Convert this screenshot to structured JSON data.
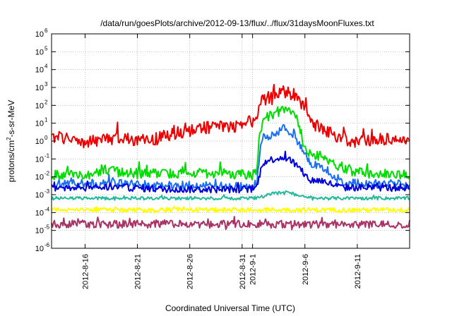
{
  "chart_data": {
    "type": "line",
    "title": "/data/run/goesPlots/archive/2012-09-13/flux/../flux/31daysMoonFluxes.txt",
    "xlabel": "Coordinated Universal Time (UTC)",
    "ylabel_prefix": "protons/cm",
    "ylabel_sup": "2",
    "ylabel_suffix": "-s-sr-MeV",
    "yscale": "log",
    "ylim_exp": [
      -6,
      6
    ],
    "y_ticks": [
      {
        "base": "10",
        "exp": "-6"
      },
      {
        "base": "10",
        "exp": "-5"
      },
      {
        "base": "10",
        "exp": "-4"
      },
      {
        "base": "10",
        "exp": "-3"
      },
      {
        "base": "10",
        "exp": "-2"
      },
      {
        "base": "10",
        "exp": "-1"
      },
      {
        "base": "10",
        "exp": "0"
      },
      {
        "base": "10",
        "exp": "1"
      },
      {
        "base": "10",
        "exp": "2"
      },
      {
        "base": "10",
        "exp": "3"
      },
      {
        "base": "10",
        "exp": "4"
      },
      {
        "base": "10",
        "exp": "5"
      },
      {
        "base": "10",
        "exp": "6"
      }
    ],
    "xlim_days": [
      -3.2,
      31.0
    ],
    "x_ticks": [
      {
        "label": "2012-8-16",
        "day": 0
      },
      {
        "label": "2012-8-21",
        "day": 5
      },
      {
        "label": "2012-8-26",
        "day": 10
      },
      {
        "label": "2012-8-31",
        "day": 15
      },
      {
        "label": "2012-9-1",
        "day": 16
      },
      {
        "label": "2012-9-6",
        "day": 21
      },
      {
        "label": "2012-9-11",
        "day": 26
      }
    ],
    "grid": true,
    "legend": "none",
    "series": [
      {
        "color": "#ee0000",
        "anchors": [
          [
            -3.2,
            0.1
          ],
          [
            -2.8,
            0.3
          ],
          [
            0.0,
            -0.1
          ],
          [
            3.0,
            0.2
          ],
          [
            6.0,
            0.0
          ],
          [
            9.0,
            0.5
          ],
          [
            12.0,
            0.8
          ],
          [
            14.0,
            0.8
          ],
          [
            15.5,
            1.0
          ],
          [
            16.3,
            1.2
          ],
          [
            16.6,
            2.0
          ],
          [
            17.0,
            2.3
          ],
          [
            18.0,
            2.4
          ],
          [
            19.0,
            2.8
          ],
          [
            20.0,
            2.6
          ],
          [
            20.8,
            2.0
          ],
          [
            21.5,
            1.2
          ],
          [
            22.0,
            0.9
          ],
          [
            23.0,
            0.6
          ],
          [
            24.0,
            0.3
          ],
          [
            25.0,
            0.0
          ],
          [
            27.0,
            0.0
          ],
          [
            28.0,
            0.1
          ],
          [
            29.5,
            0.2
          ],
          [
            31.0,
            -0.2
          ]
        ],
        "noise": 0.35
      },
      {
        "color": "#00dd00",
        "anchors": [
          [
            -3.2,
            -1.9
          ],
          [
            0.0,
            -1.9
          ],
          [
            2.0,
            -1.6
          ],
          [
            4.0,
            -1.8
          ],
          [
            8.0,
            -1.8
          ],
          [
            12.0,
            -1.8
          ],
          [
            16.0,
            -1.9
          ],
          [
            16.4,
            -1.7
          ],
          [
            16.7,
            0.5
          ],
          [
            17.0,
            1.2
          ],
          [
            17.5,
            1.4
          ],
          [
            18.5,
            1.6
          ],
          [
            19.5,
            1.8
          ],
          [
            20.3,
            1.2
          ],
          [
            20.8,
            0.0
          ],
          [
            21.5,
            -0.8
          ],
          [
            22.5,
            -0.8
          ],
          [
            23.5,
            -1.1
          ],
          [
            24.5,
            -1.6
          ],
          [
            27.0,
            -1.8
          ],
          [
            31.0,
            -1.9
          ]
        ],
        "noise": 0.28
      },
      {
        "color": "#1a70f0",
        "anchors": [
          [
            -3.2,
            -2.4
          ],
          [
            4.0,
            -2.4
          ],
          [
            8.0,
            -2.5
          ],
          [
            12.0,
            -2.5
          ],
          [
            16.0,
            -2.6
          ],
          [
            16.4,
            -2.3
          ],
          [
            16.7,
            -0.5
          ],
          [
            17.0,
            0.2
          ],
          [
            18.0,
            0.4
          ],
          [
            19.0,
            0.7
          ],
          [
            20.0,
            0.4
          ],
          [
            20.7,
            -0.5
          ],
          [
            21.5,
            -1.2
          ],
          [
            22.5,
            -1.4
          ],
          [
            23.5,
            -1.8
          ],
          [
            24.5,
            -2.3
          ],
          [
            27.0,
            -2.4
          ],
          [
            31.0,
            -2.4
          ]
        ],
        "noise": 0.25
      },
      {
        "color": "#0000dd",
        "anchors": [
          [
            -3.2,
            -2.6
          ],
          [
            4.0,
            -2.6
          ],
          [
            8.0,
            -2.7
          ],
          [
            12.0,
            -2.7
          ],
          [
            16.0,
            -2.7
          ],
          [
            16.4,
            -2.6
          ],
          [
            16.7,
            -1.8
          ],
          [
            17.0,
            -1.2
          ],
          [
            18.0,
            -1.0
          ],
          [
            19.0,
            -0.9
          ],
          [
            20.0,
            -1.2
          ],
          [
            20.7,
            -1.7
          ],
          [
            21.5,
            -2.2
          ],
          [
            22.5,
            -2.2
          ],
          [
            23.5,
            -2.4
          ],
          [
            24.5,
            -2.6
          ],
          [
            27.0,
            -2.6
          ],
          [
            31.0,
            -2.6
          ]
        ],
        "noise": 0.2
      },
      {
        "color": "#22bb99",
        "anchors": [
          [
            -3.2,
            -3.2
          ],
          [
            16.0,
            -3.2
          ],
          [
            17.0,
            -3.1
          ],
          [
            18.0,
            -2.9
          ],
          [
            19.5,
            -2.9
          ],
          [
            20.5,
            -3.1
          ],
          [
            22.0,
            -3.2
          ],
          [
            31.0,
            -3.2
          ]
        ],
        "noise": 0.09
      },
      {
        "color": "#ffff00",
        "anchors": [
          [
            -3.2,
            -3.85
          ],
          [
            31.0,
            -3.85
          ]
        ],
        "noise": 0.13
      },
      {
        "color": "#aa3366",
        "anchors": [
          [
            -3.2,
            -4.65
          ],
          [
            31.0,
            -4.65
          ]
        ],
        "noise": 0.22
      }
    ]
  }
}
